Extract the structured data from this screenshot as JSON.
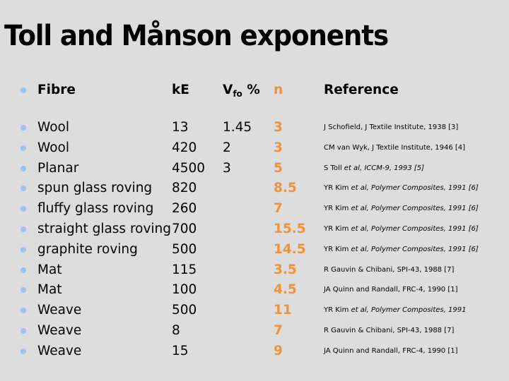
{
  "title": "Toll and Månson exponents",
  "header": {
    "fibre": "Fibre",
    "ke": "kE",
    "vf_main": "V",
    "vf_sub": "fo",
    "vf_unit": " %",
    "n": "n",
    "reference": "Reference"
  },
  "colors": {
    "background": "#dddddd",
    "bullet": "#9cc3ee",
    "n_accent": "#f0923a"
  },
  "rows": [
    {
      "fibre": "Wool",
      "ke": "13",
      "vf": "1.45",
      "n": "3",
      "ref_a": "J Schofield, J Textile Institute, 1938 [3]",
      "ref_i": ""
    },
    {
      "fibre": "Wool",
      "ke": "420",
      "vf": "2",
      "n": "3",
      "ref_a": "CM van Wyk, J Textile Institute, 1946 [4]",
      "ref_i": ""
    },
    {
      "fibre": "Planar",
      "ke": "4500",
      "vf": "3",
      "n": "5",
      "ref_a": "S Toll ",
      "ref_i": "et al, ICCM-9, 1993 [5]"
    },
    {
      "fibre": "spun glass roving",
      "ke": "820",
      "vf": "",
      "n": "8.5",
      "ref_a": "YR Kim ",
      "ref_i": "et al, Polymer Composites, 1991 [6]"
    },
    {
      "fibre": "fluffy glass roving",
      "ke": "260",
      "vf": "",
      "n": "7",
      "ref_a": "YR Kim ",
      "ref_i": "et al, Polymer Composites, 1991 [6]"
    },
    {
      "fibre": "straight glass roving",
      "ke": "700",
      "vf": "",
      "n": "15.5",
      "ref_a": "YR Kim ",
      "ref_i": "et al, Polymer Composites, 1991 [6]"
    },
    {
      "fibre": "graphite roving",
      "ke": "500",
      "vf": "",
      "n": "14.5",
      "ref_a": "YR Kim ",
      "ref_i": "et al, Polymer Composites, 1991 [6]"
    },
    {
      "fibre": "Mat",
      "ke": "115",
      "vf": "",
      "n": "3.5",
      "ref_a": "R Gauvin & Chibani, SPI-43, 1988 [7]",
      "ref_i": ""
    },
    {
      "fibre": "Mat",
      "ke": "100",
      "vf": "",
      "n": "4.5",
      "ref_a": "JA Quinn and Randall, FRC-4, 1990 [1]",
      "ref_i": ""
    },
    {
      "fibre": "Weave",
      "ke": "500",
      "vf": "",
      "n": "11",
      "ref_a": "YR Kim ",
      "ref_i": "et al, Polymer Composites, 1991"
    },
    {
      "fibre": "Weave",
      "ke": "8",
      "vf": "",
      "n": "7",
      "ref_a": "R Gauvin & Chibani, SPI-43, 1988 [7]",
      "ref_i": ""
    },
    {
      "fibre": "Weave",
      "ke": "15",
      "vf": "",
      "n": "9",
      "ref_a": "JA Quinn and Randall, FRC-4, 1990 [1]",
      "ref_i": ""
    }
  ]
}
